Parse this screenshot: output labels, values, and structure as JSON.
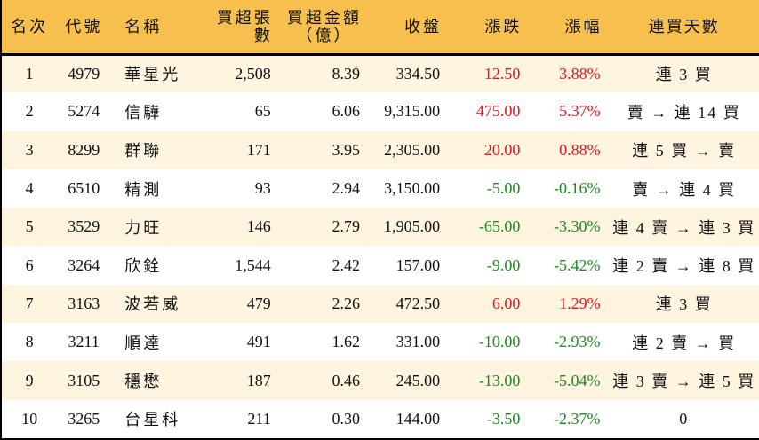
{
  "table": {
    "headers": {
      "rank": "名次",
      "code": "代號",
      "name": "名稱",
      "net_buy_lots": "買超張數",
      "net_buy_amount_line1": "買超金額",
      "net_buy_amount_line2": "（億）",
      "close": "收盤",
      "change": "漲跌",
      "change_pct": "漲幅",
      "consecutive_days": "連買天數"
    },
    "colors": {
      "header_bg": "#F7BF4E",
      "row_odd_bg": "#FEF4DF",
      "row_even_bg": "#FFFFFF",
      "up": "#E8151B",
      "down": "#1C8B1C"
    },
    "rows": [
      {
        "rank": "1",
        "code": "4979",
        "name": "華星光",
        "lots": "2,508",
        "amount": "8.39",
        "close": "334.50",
        "change": "12.50",
        "pct": "3.88%",
        "dir": "up",
        "streak": "連 3 買"
      },
      {
        "rank": "2",
        "code": "5274",
        "name": "信驊",
        "lots": "65",
        "amount": "6.06",
        "close": "9,315.00",
        "change": "475.00",
        "pct": "5.37%",
        "dir": "up",
        "streak": "賣 → 連 14 買"
      },
      {
        "rank": "3",
        "code": "8299",
        "name": "群聯",
        "lots": "171",
        "amount": "3.95",
        "close": "2,305.00",
        "change": "20.00",
        "pct": "0.88%",
        "dir": "up",
        "streak": "連 5 買 → 賣"
      },
      {
        "rank": "4",
        "code": "6510",
        "name": "精測",
        "lots": "93",
        "amount": "2.94",
        "close": "3,150.00",
        "change": "-5.00",
        "pct": "-0.16%",
        "dir": "down",
        "streak": "賣 → 連 4 買"
      },
      {
        "rank": "5",
        "code": "3529",
        "name": "力旺",
        "lots": "146",
        "amount": "2.79",
        "close": "1,905.00",
        "change": "-65.00",
        "pct": "-3.30%",
        "dir": "down",
        "streak": "連 4 賣 → 連 3 買"
      },
      {
        "rank": "6",
        "code": "3264",
        "name": "欣銓",
        "lots": "1,544",
        "amount": "2.42",
        "close": "157.00",
        "change": "-9.00",
        "pct": "-5.42%",
        "dir": "down",
        "streak": "連 2 賣 → 連 8 買"
      },
      {
        "rank": "7",
        "code": "3163",
        "name": "波若威",
        "lots": "479",
        "amount": "2.26",
        "close": "472.50",
        "change": "6.00",
        "pct": "1.29%",
        "dir": "up",
        "streak": "連 3 買"
      },
      {
        "rank": "8",
        "code": "3211",
        "name": "順達",
        "lots": "491",
        "amount": "1.62",
        "close": "331.00",
        "change": "-10.00",
        "pct": "-2.93%",
        "dir": "down",
        "streak": "連 2 賣 → 買"
      },
      {
        "rank": "9",
        "code": "3105",
        "name": "穩懋",
        "lots": "187",
        "amount": "0.46",
        "close": "245.00",
        "change": "-13.00",
        "pct": "-5.04%",
        "dir": "down",
        "streak": "連 3 賣 → 連 5 買"
      },
      {
        "rank": "10",
        "code": "3265",
        "name": "台星科",
        "lots": "211",
        "amount": "0.30",
        "close": "144.00",
        "change": "-3.50",
        "pct": "-2.37%",
        "dir": "down",
        "streak": "0"
      }
    ]
  }
}
